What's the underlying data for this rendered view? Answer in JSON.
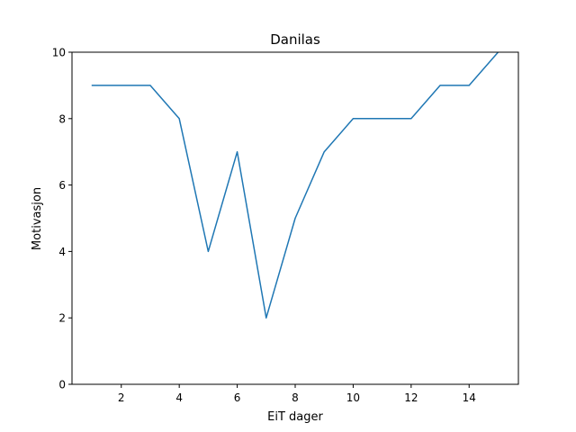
{
  "chart_data": {
    "type": "line",
    "title": "Danilas",
    "xlabel": "EiT dager",
    "ylabel": "Motivasjon",
    "xlim": [
      0.3,
      15.7
    ],
    "ylim": [
      0,
      10
    ],
    "xticks": [
      2,
      4,
      6,
      8,
      10,
      12,
      14
    ],
    "yticks": [
      0,
      2,
      4,
      6,
      8,
      10
    ],
    "grid": false,
    "series": [
      {
        "color": "#1f77b4",
        "x": [
          1,
          2,
          3,
          4,
          5,
          6,
          7,
          8,
          9,
          10,
          11,
          12,
          13,
          14,
          15
        ],
        "y": [
          9,
          9,
          9,
          8,
          4,
          7,
          2,
          5,
          7,
          8,
          8,
          8,
          9,
          9,
          10
        ]
      }
    ]
  }
}
